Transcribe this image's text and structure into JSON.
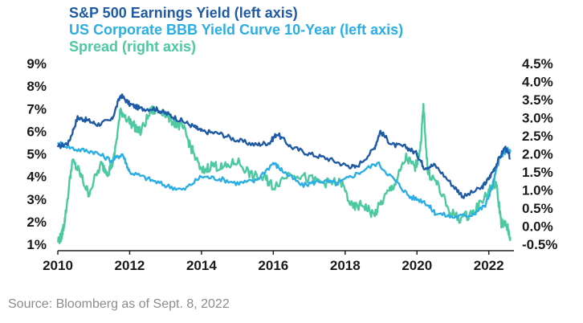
{
  "chart_data": {
    "type": "line",
    "xlim": [
      2010,
      2022.7
    ],
    "ylim_left": [
      1,
      9
    ],
    "ylim_right": [
      -0.5,
      4.5
    ],
    "x_ticks": [
      "2010",
      "2012",
      "2014",
      "2016",
      "2018",
      "2020",
      "2022"
    ],
    "y_left_ticks": [
      "1%",
      "2%",
      "3%",
      "4%",
      "5%",
      "6%",
      "7%",
      "8%",
      "9%"
    ],
    "y_right_ticks": [
      "-0.5%",
      "0.0%",
      "0.5%",
      "1.0%",
      "1.5%",
      "2.0%",
      "2.5%",
      "3.0%",
      "3.5%",
      "4.0%",
      "4.5%"
    ],
    "grid": false,
    "legend_position": "top-left",
    "series": [
      {
        "name": "S&P 500 Earnings Yield (left axis)",
        "axis": "left",
        "color": "#1f5aa6",
        "x": [
          2010.0,
          2010.3,
          2010.55,
          2010.8,
          2011.1,
          2011.5,
          2011.75,
          2012.0,
          2012.3,
          2012.7,
          2013.0,
          2013.4,
          2013.8,
          2014.0,
          2014.5,
          2015.0,
          2015.5,
          2015.9,
          2016.1,
          2016.5,
          2017.0,
          2017.5,
          2018.0,
          2018.3,
          2018.8,
          2018.98,
          2019.3,
          2019.7,
          2020.0,
          2020.2,
          2020.5,
          2021.0,
          2021.3,
          2021.8,
          2022.0,
          2022.2,
          2022.45,
          2022.6
        ],
        "values": [
          5.3,
          5.5,
          6.6,
          6.5,
          6.3,
          6.5,
          7.6,
          7.2,
          7.0,
          7.0,
          6.8,
          6.5,
          6.2,
          6.0,
          5.9,
          5.6,
          5.4,
          5.5,
          5.9,
          5.3,
          5.0,
          4.8,
          4.5,
          4.4,
          5.2,
          6.0,
          5.4,
          5.3,
          5.0,
          4.4,
          4.5,
          3.6,
          3.1,
          3.5,
          3.9,
          4.5,
          5.3,
          4.8
        ]
      },
      {
        "name": "US Corporate BBB Yield Curve 10-Year (left axis)",
        "axis": "left",
        "color": "#2aaee3",
        "x": [
          2010.0,
          2010.5,
          2011.0,
          2011.5,
          2011.8,
          2012.0,
          2012.5,
          2013.0,
          2013.5,
          2014.0,
          2014.5,
          2015.0,
          2015.5,
          2016.0,
          2016.3,
          2016.8,
          2017.3,
          2017.8,
          2018.3,
          2018.9,
          2019.4,
          2019.8,
          2020.2,
          2020.5,
          2021.0,
          2021.5,
          2021.9,
          2022.1,
          2022.3,
          2022.5,
          2022.6
        ],
        "values": [
          5.5,
          5.2,
          5.1,
          4.7,
          5.0,
          4.2,
          3.9,
          3.6,
          3.4,
          4.0,
          3.9,
          3.7,
          3.8,
          4.6,
          4.2,
          3.6,
          3.8,
          3.7,
          4.1,
          4.6,
          3.8,
          3.1,
          2.9,
          2.4,
          2.2,
          2.3,
          2.7,
          3.6,
          4.8,
          5.2,
          5.1
        ]
      },
      {
        "name": "Spread (right axis)",
        "axis": "right",
        "color": "#4cc9a0",
        "x": [
          2010.0,
          2010.1,
          2010.2,
          2010.4,
          2010.6,
          2010.85,
          2011.2,
          2011.4,
          2011.55,
          2011.75,
          2012.0,
          2012.3,
          2012.6,
          2012.9,
          2013.2,
          2013.5,
          2013.7,
          2014.0,
          2014.3,
          2014.6,
          2015.0,
          2015.4,
          2015.8,
          2016.0,
          2016.5,
          2017.0,
          2017.5,
          2017.9,
          2018.2,
          2018.5,
          2018.8,
          2019.1,
          2019.4,
          2019.7,
          2019.95,
          2020.1,
          2020.18,
          2020.3,
          2020.55,
          2020.9,
          2021.2,
          2021.6,
          2022.0,
          2022.2,
          2022.35,
          2022.5,
          2022.6
        ],
        "values": [
          -0.4,
          -0.3,
          0.2,
          1.8,
          1.5,
          0.9,
          1.7,
          1.5,
          1.8,
          3.2,
          2.9,
          2.6,
          3.2,
          3.2,
          2.9,
          2.7,
          2.2,
          1.5,
          1.7,
          1.6,
          1.8,
          1.4,
          1.3,
          1.1,
          1.5,
          1.3,
          1.2,
          1.2,
          0.5,
          0.6,
          0.3,
          0.8,
          1.2,
          1.9,
          1.6,
          2.2,
          3.3,
          1.5,
          1.2,
          0.4,
          0.2,
          0.4,
          1.0,
          1.2,
          0.1,
          0.0,
          -0.3
        ]
      }
    ]
  },
  "source_text": "Source: Bloomberg as of Sept. 8, 2022"
}
